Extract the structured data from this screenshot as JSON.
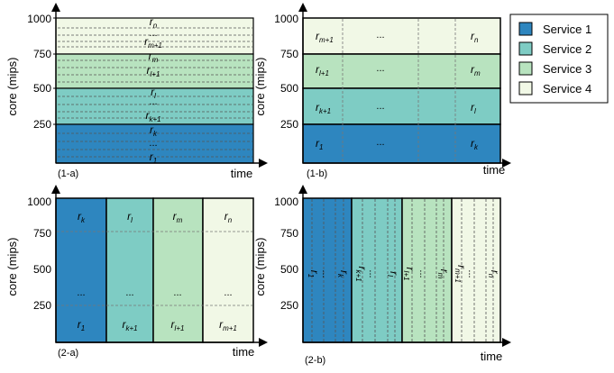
{
  "colors": {
    "service1": "#2E86BF",
    "service2": "#7ECCC4",
    "service3": "#B8E3BF",
    "service4": "#F1F8E6",
    "axis": "#000000",
    "dash": "#8a8a8a"
  },
  "axes": {
    "ylabel": "core (mips)",
    "xlabel": "time",
    "ticks": [
      "1000",
      "750",
      "500",
      "250"
    ]
  },
  "legend": [
    {
      "label": "Service 1",
      "color_key": "service1"
    },
    {
      "label": "Service 2",
      "color_key": "service2"
    },
    {
      "label": "Service 3",
      "color_key": "service3"
    },
    {
      "label": "Service 4",
      "color_key": "service4"
    }
  ],
  "panels": {
    "p1a": {
      "caption": "(1-a)",
      "labels": [
        {
          "main": "r",
          "sub": "n"
        },
        {
          "main": "...",
          "sub": ""
        },
        {
          "main": "r",
          "sub": "m+1"
        },
        {
          "main": "r",
          "sub": "m"
        },
        {
          "main": "r",
          "sub": "l+1"
        },
        {
          "main": "r",
          "sub": "l"
        },
        {
          "main": "...",
          "sub": ""
        },
        {
          "main": "r",
          "sub": "k+1"
        },
        {
          "main": "r",
          "sub": "k"
        },
        {
          "main": "...",
          "sub": ""
        },
        {
          "main": "r",
          "sub": "1"
        }
      ]
    },
    "p1b": {
      "caption": "(1-b)",
      "rows": [
        {
          "left": {
            "main": "r",
            "sub": "m+1"
          },
          "mid": "...",
          "right": {
            "main": "r",
            "sub": "n"
          }
        },
        {
          "left": {
            "main": "r",
            "sub": "l+1"
          },
          "mid": "...",
          "right": {
            "main": "r",
            "sub": "m"
          }
        },
        {
          "left": {
            "main": "r",
            "sub": "k+1"
          },
          "mid": "...",
          "right": {
            "main": "r",
            "sub": "l"
          }
        },
        {
          "left": {
            "main": "r",
            "sub": "1"
          },
          "mid": "...",
          "right": {
            "main": "r",
            "sub": "k"
          }
        }
      ]
    },
    "p2a": {
      "caption": "(2-a)",
      "cols": [
        {
          "top": {
            "main": "r",
            "sub": "k"
          },
          "mid": "...",
          "bottom": {
            "main": "r",
            "sub": "1"
          }
        },
        {
          "top": {
            "main": "r",
            "sub": "l"
          },
          "mid": "...",
          "bottom": {
            "main": "r",
            "sub": "k+1"
          }
        },
        {
          "top": {
            "main": "r",
            "sub": "m"
          },
          "mid": "...",
          "bottom": {
            "main": "r",
            "sub": "l+1"
          }
        },
        {
          "top": {
            "main": "r",
            "sub": "n"
          },
          "mid": "...",
          "bottom": {
            "main": "r",
            "sub": "m+1"
          }
        }
      ]
    },
    "p2b": {
      "caption": "(2-b)",
      "labels": [
        {
          "main": "r",
          "sub": "1"
        },
        {
          "main": "...",
          "sub": ""
        },
        {
          "main": "r",
          "sub": "k"
        },
        {
          "main": "r",
          "sub": "k+1"
        },
        {
          "main": "...",
          "sub": ""
        },
        {
          "main": "r",
          "sub": "l"
        },
        {
          "main": "r",
          "sub": "l+1"
        },
        {
          "main": "...",
          "sub": ""
        },
        {
          "main": "r",
          "sub": "m"
        },
        {
          "main": "r",
          "sub": "m+1"
        },
        {
          "main": "...",
          "sub": ""
        },
        {
          "main": "r",
          "sub": "n"
        }
      ]
    }
  }
}
